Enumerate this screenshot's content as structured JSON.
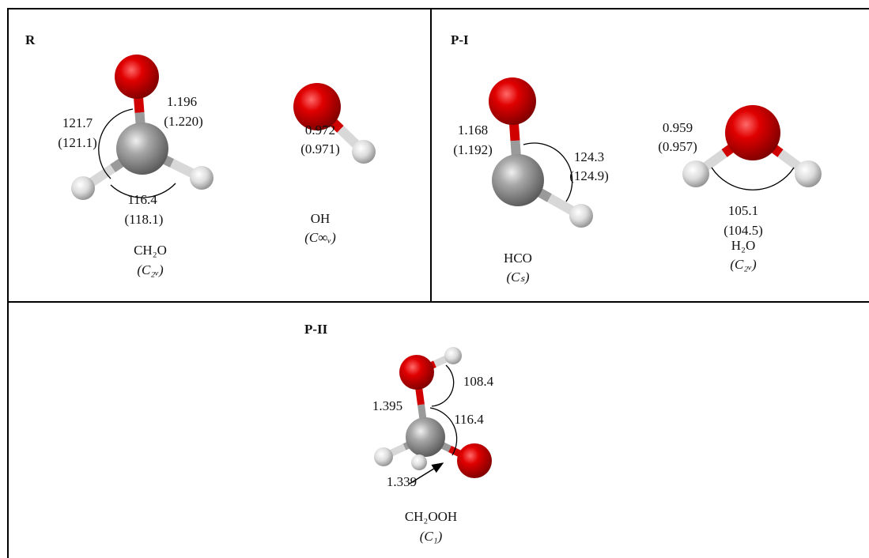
{
  "panels": [
    {
      "title": "R",
      "labels": [
        {
          "text": "1.196"
        },
        {
          "text": "(1.220)"
        },
        {
          "text": "121.7"
        },
        {
          "text": "(121.1)"
        },
        {
          "text": "116.4"
        },
        {
          "text": "(118.1)"
        },
        {
          "text": "CH₂O"
        },
        {
          "text": "(C₂ᵥ)"
        },
        {
          "text": "0.972"
        },
        {
          "text": "(0.971)"
        },
        {
          "text": "OH"
        },
        {
          "text": "(C∞ᵥ)"
        }
      ]
    },
    {
      "title": "P-I",
      "labels": [
        {
          "text": "1.168"
        },
        {
          "text": "(1.192)"
        },
        {
          "text": "124.3"
        },
        {
          "text": "(124.9)"
        },
        {
          "text": "HCO"
        },
        {
          "text": "(Cₛ)"
        },
        {
          "text": "0.959"
        },
        {
          "text": "(0.957)"
        },
        {
          "text": "105.1"
        },
        {
          "text": "(104.5)"
        },
        {
          "text": "H₂O"
        },
        {
          "text": "(C₂ᵥ)"
        }
      ]
    },
    {
      "title": "P-II",
      "labels": [
        {
          "text": "108.4"
        },
        {
          "text": "1.395"
        },
        {
          "text": "116.4"
        },
        {
          "text": "1.339"
        },
        {
          "text": "CH₂OOH"
        },
        {
          "text": "(C₁)"
        }
      ]
    }
  ]
}
